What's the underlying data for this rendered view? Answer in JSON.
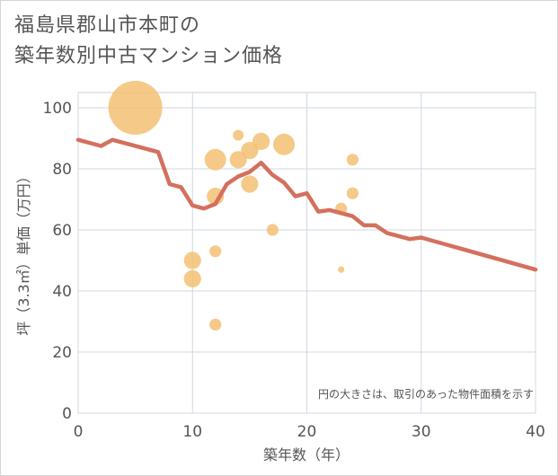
{
  "title_line1": "福島県郡山市本町の",
  "title_line2": "築年数別中古マンション価格",
  "chart_data": {
    "type": "scatter",
    "xlabel": "築年数（年）",
    "ylabel": "坪（3.3㎡）単価（万円）",
    "xlim": [
      0,
      40
    ],
    "ylim": [
      0,
      105
    ],
    "xticks": [
      0,
      10,
      20,
      30,
      40
    ],
    "yticks": [
      0,
      20,
      40,
      60,
      80,
      100
    ],
    "grid": true,
    "note": "円の大きさは、取引のあった物件面積を示す",
    "colors": {
      "bubble": "#f3c173",
      "line": "#d4705e",
      "grid": "#d0d8e0",
      "axis_text": "#555555"
    },
    "bubbles": [
      {
        "x": 5,
        "y": 100,
        "size": 5
      },
      {
        "x": 12,
        "y": 83,
        "size": 2
      },
      {
        "x": 14,
        "y": 91,
        "size": 1
      },
      {
        "x": 14,
        "y": 83,
        "size": 1.6
      },
      {
        "x": 15,
        "y": 86,
        "size": 1.6
      },
      {
        "x": 16,
        "y": 89,
        "size": 1.6
      },
      {
        "x": 18,
        "y": 88,
        "size": 2
      },
      {
        "x": 12,
        "y": 71,
        "size": 1.6
      },
      {
        "x": 15,
        "y": 75,
        "size": 1.6
      },
      {
        "x": 17,
        "y": 60,
        "size": 1.1
      },
      {
        "x": 12,
        "y": 53,
        "size": 1.1
      },
      {
        "x": 10,
        "y": 50,
        "size": 1.6
      },
      {
        "x": 10,
        "y": 44,
        "size": 1.6
      },
      {
        "x": 12,
        "y": 29,
        "size": 1.1
      },
      {
        "x": 23,
        "y": 67,
        "size": 1.1
      },
      {
        "x": 23,
        "y": 47,
        "size": 0.6
      },
      {
        "x": 24,
        "y": 83,
        "size": 1.1
      },
      {
        "x": 24,
        "y": 72,
        "size": 1.1
      }
    ],
    "series": [
      {
        "name": "trend",
        "x": [
          0,
          2,
          3,
          7,
          8,
          9,
          10,
          11,
          12,
          13,
          14,
          15,
          16,
          17,
          18,
          19,
          20,
          21,
          22,
          23,
          24,
          25,
          26,
          27,
          29,
          30,
          40
        ],
        "y": [
          89.5,
          87.5,
          89.5,
          85.5,
          75,
          74,
          68,
          67,
          68.5,
          75,
          77.5,
          79,
          82,
          78,
          75.5,
          71,
          72,
          66,
          66.5,
          65.5,
          64.5,
          61.5,
          61.5,
          59,
          57,
          57.5,
          47
        ]
      }
    ]
  }
}
